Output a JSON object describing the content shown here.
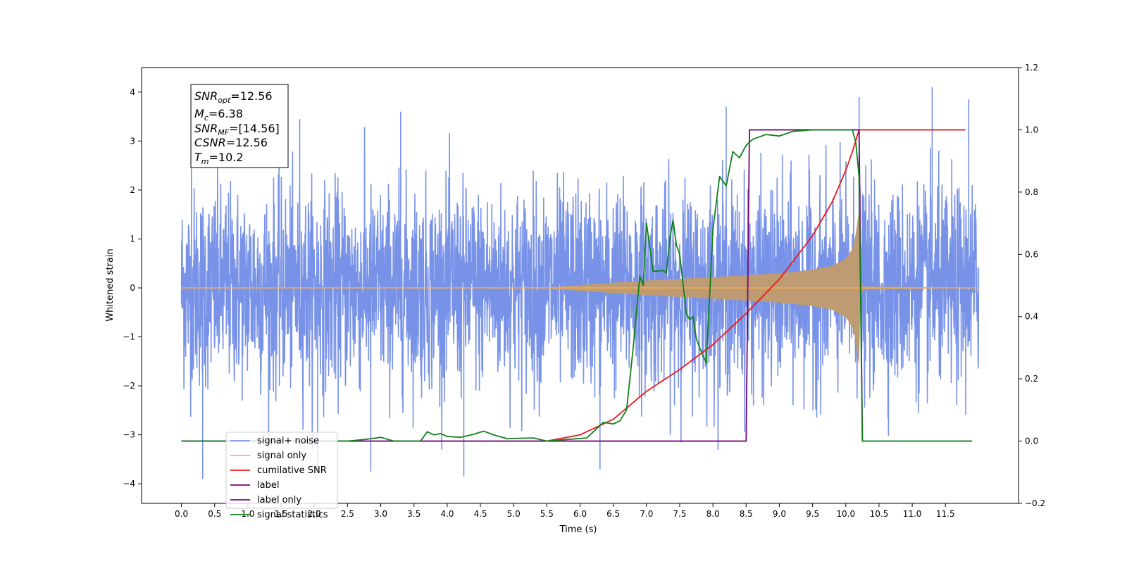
{
  "chart_data": {
    "type": "line",
    "xlabel": "Time (s)",
    "ylabel": "Whitened strain",
    "xlim": [
      -0.6,
      12.6
    ],
    "ylim": [
      -4.4,
      4.5
    ],
    "y2lim": [
      -0.2,
      1.2
    ],
    "x_ticks": [
      0.0,
      0.5,
      1.0,
      1.5,
      2.0,
      2.5,
      3.0,
      3.5,
      4.0,
      4.5,
      5.0,
      5.5,
      6.0,
      6.5,
      7.0,
      7.5,
      8.0,
      8.5,
      9.0,
      9.5,
      10.0,
      10.5,
      11.0,
      11.5
    ],
    "x_tick_labels": [
      "0.0",
      "0.5",
      "1.0",
      "1.5",
      "2.0",
      "2.5",
      "3.0",
      "3.5",
      "4.0",
      "4.5",
      "5.0",
      "5.5",
      "6.0",
      "6.5",
      "7.0",
      "7.5",
      "8.0",
      "8.5",
      "9.0",
      "9.5",
      "10.0",
      "10.5",
      "11.0",
      "11.5"
    ],
    "y_ticks": [
      -4,
      -3,
      -2,
      -1,
      0,
      1,
      2,
      3,
      4
    ],
    "y_tick_labels": [
      "−4",
      "−3",
      "−2",
      "−1",
      "0",
      "1",
      "2",
      "3",
      "4"
    ],
    "y2_ticks": [
      -0.2,
      0.0,
      0.2,
      0.4,
      0.6,
      0.8,
      1.0,
      1.2
    ],
    "y2_tick_labels": [
      "−0.2",
      "0.0",
      "0.2",
      "0.4",
      "0.6",
      "0.8",
      "1.0",
      "1.2"
    ],
    "legend_position": "lower-left",
    "grid": false,
    "annotation": {
      "snr_opt": "12.56",
      "mc": "6.38",
      "snr_mf": "[14.56]",
      "csnr": "12.56",
      "tm": "10.2"
    },
    "series": [
      {
        "name": "signal+ noise",
        "axis": "left",
        "color": "#7892e8",
        "kind": "whitened noise",
        "x_range": [
          0.0,
          12.0
        ],
        "spike_peaks": [
          {
            "x": 0.15,
            "y": 3.4
          },
          {
            "x": 0.32,
            "y": -3.9
          },
          {
            "x": 1.78,
            "y": 3.45
          },
          {
            "x": 2.05,
            "y": -3.7
          },
          {
            "x": 2.85,
            "y": -3.75
          },
          {
            "x": 3.3,
            "y": 3.6
          },
          {
            "x": 4.25,
            "y": -3.85
          },
          {
            "x": 6.3,
            "y": -3.7
          },
          {
            "x": 8.2,
            "y": 3.7
          },
          {
            "x": 10.2,
            "y": 3.9
          },
          {
            "x": 11.3,
            "y": 4.1
          },
          {
            "x": 11.85,
            "y": 3.85
          }
        ]
      },
      {
        "name": "signal only",
        "axis": "left",
        "color": "#ffb347",
        "kind": "chirp",
        "fill_color": "#bf9b73",
        "envelope": [
          {
            "x": 0.0,
            "y": 0.0
          },
          {
            "x": 5.5,
            "y": 0.01
          },
          {
            "x": 6.0,
            "y": 0.06
          },
          {
            "x": 7.0,
            "y": 0.15
          },
          {
            "x": 8.0,
            "y": 0.22
          },
          {
            "x": 9.0,
            "y": 0.3
          },
          {
            "x": 9.5,
            "y": 0.37
          },
          {
            "x": 9.8,
            "y": 0.45
          },
          {
            "x": 10.0,
            "y": 0.6
          },
          {
            "x": 10.1,
            "y": 0.8
          },
          {
            "x": 10.15,
            "y": 1.1
          },
          {
            "x": 10.2,
            "y": 1.6
          },
          {
            "x": 10.22,
            "y": 0.3
          },
          {
            "x": 10.25,
            "y": 0.03
          },
          {
            "x": 12.0,
            "y": 0.0
          }
        ]
      },
      {
        "name": "cumilative SNR",
        "axis": "right",
        "color": "#e8191b",
        "points": [
          {
            "x": 5.5,
            "y": 0.0
          },
          {
            "x": 6.0,
            "y": 0.02
          },
          {
            "x": 6.5,
            "y": 0.07
          },
          {
            "x": 7.0,
            "y": 0.16
          },
          {
            "x": 7.5,
            "y": 0.23
          },
          {
            "x": 8.0,
            "y": 0.31
          },
          {
            "x": 8.5,
            "y": 0.41
          },
          {
            "x": 9.0,
            "y": 0.52
          },
          {
            "x": 9.5,
            "y": 0.66
          },
          {
            "x": 9.8,
            "y": 0.77
          },
          {
            "x": 10.0,
            "y": 0.87
          },
          {
            "x": 10.1,
            "y": 0.93
          },
          {
            "x": 10.2,
            "y": 1.0
          },
          {
            "x": 11.0,
            "y": 1.0
          },
          {
            "x": 11.8,
            "y": 1.0
          }
        ]
      },
      {
        "name": "label",
        "axis": "right",
        "color": "#73087a",
        "points": [
          {
            "x": 0.0,
            "y": 0.0
          },
          {
            "x": 8.5,
            "y": 0.0
          },
          {
            "x": 8.55,
            "y": 1.0
          },
          {
            "x": 10.2,
            "y": 1.0
          },
          {
            "x": 10.25,
            "y": 0.0
          }
        ]
      },
      {
        "name": "label only",
        "axis": "right",
        "color": "#73087a",
        "points": []
      },
      {
        "name": "signal statistics",
        "axis": "right",
        "color": "#11801a",
        "points": [
          {
            "x": 0.0,
            "y": 0.0
          },
          {
            "x": 2.5,
            "y": 0.0
          },
          {
            "x": 2.75,
            "y": 0.005
          },
          {
            "x": 3.0,
            "y": 0.012
          },
          {
            "x": 3.2,
            "y": 0.0
          },
          {
            "x": 3.6,
            "y": 0.0
          },
          {
            "x": 3.7,
            "y": 0.03
          },
          {
            "x": 3.8,
            "y": 0.02
          },
          {
            "x": 3.9,
            "y": 0.024
          },
          {
            "x": 4.0,
            "y": 0.015
          },
          {
            "x": 4.2,
            "y": 0.012
          },
          {
            "x": 4.4,
            "y": 0.022
          },
          {
            "x": 4.55,
            "y": 0.032
          },
          {
            "x": 4.7,
            "y": 0.02
          },
          {
            "x": 4.9,
            "y": 0.008
          },
          {
            "x": 5.3,
            "y": 0.01
          },
          {
            "x": 5.5,
            "y": 0.0
          },
          {
            "x": 6.1,
            "y": 0.01
          },
          {
            "x": 6.2,
            "y": 0.03
          },
          {
            "x": 6.35,
            "y": 0.06
          },
          {
            "x": 6.5,
            "y": 0.055
          },
          {
            "x": 6.6,
            "y": 0.065
          },
          {
            "x": 6.7,
            "y": 0.1
          },
          {
            "x": 6.8,
            "y": 0.3
          },
          {
            "x": 6.9,
            "y": 0.53
          },
          {
            "x": 6.95,
            "y": 0.5
          },
          {
            "x": 7.0,
            "y": 0.7
          },
          {
            "x": 7.1,
            "y": 0.545
          },
          {
            "x": 7.25,
            "y": 0.548
          },
          {
            "x": 7.3,
            "y": 0.54
          },
          {
            "x": 7.35,
            "y": 0.65
          },
          {
            "x": 7.4,
            "y": 0.71
          },
          {
            "x": 7.45,
            "y": 0.63
          },
          {
            "x": 7.5,
            "y": 0.6
          },
          {
            "x": 7.6,
            "y": 0.41
          },
          {
            "x": 7.65,
            "y": 0.39
          },
          {
            "x": 7.7,
            "y": 0.4
          },
          {
            "x": 7.75,
            "y": 0.33
          },
          {
            "x": 7.8,
            "y": 0.3
          },
          {
            "x": 7.9,
            "y": 0.25
          },
          {
            "x": 8.0,
            "y": 0.68
          },
          {
            "x": 8.1,
            "y": 0.85
          },
          {
            "x": 8.2,
            "y": 0.82
          },
          {
            "x": 8.3,
            "y": 0.93
          },
          {
            "x": 8.4,
            "y": 0.91
          },
          {
            "x": 8.5,
            "y": 0.95
          },
          {
            "x": 8.6,
            "y": 0.97
          },
          {
            "x": 8.8,
            "y": 0.985
          },
          {
            "x": 9.0,
            "y": 0.98
          },
          {
            "x": 9.2,
            "y": 0.995
          },
          {
            "x": 9.5,
            "y": 1.0
          },
          {
            "x": 10.1,
            "y": 1.0
          },
          {
            "x": 10.15,
            "y": 0.96
          },
          {
            "x": 10.2,
            "y": 0.85
          },
          {
            "x": 10.25,
            "y": 0.0
          },
          {
            "x": 11.9,
            "y": 0.0
          }
        ]
      }
    ]
  }
}
